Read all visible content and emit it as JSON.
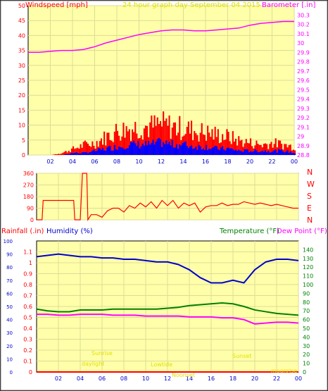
{
  "title": "24 hour graph day   September 04 2015",
  "colors": {
    "background": "#ffffff",
    "plot": "#ffffaa",
    "grid": "#dcdc96",
    "wind": "#ff0000",
    "gust": "#0000ff",
    "barometer": "#ff00ff",
    "direction": "#ff0000",
    "rain": "#ff0000",
    "humidity": "#0000cc",
    "temperature": "#008000",
    "dewpoint": "#ff00ff",
    "axis_left": "#ff0000",
    "axis_blue": "#0000cc",
    "axis_green": "#008000",
    "annotation": "#e0e000"
  },
  "x_ticks": [
    "02",
    "04",
    "06",
    "08",
    "10",
    "12",
    "14",
    "16",
    "18",
    "20",
    "22",
    "00"
  ],
  "annotations": {
    "sunrise": "Sunrise",
    "daylight": "daylight",
    "lowtide": "Lowtide",
    "noonset": "Noonset",
    "sunset": "Sunset",
    "moonrise": "moonrise"
  },
  "chart_data": [
    {
      "type": "line",
      "name": "wind-barometer",
      "title": "24 hour graph day   September 04 2015",
      "ylabel_left": "Windspeed [mph]",
      "ylabel_right": "Barometer [.in]",
      "ylim_left": [
        0,
        50
      ],
      "ylim_right": [
        28.8,
        30.4
      ],
      "yticks_left": [
        "0",
        "5",
        "10",
        "15",
        "20",
        "25",
        "30",
        "35",
        "40",
        "45",
        "50"
      ],
      "yticks_right": [
        "28.8",
        "28.9",
        "29",
        "29.1",
        "29.2",
        "29.3",
        "29.4",
        "29.5",
        "29.6",
        "29.7",
        "29.8",
        "29.9",
        "30",
        "30.1",
        "30.2",
        "30.3"
      ],
      "x_hours": [
        0,
        1,
        2,
        3,
        4,
        5,
        6,
        7,
        8,
        9,
        10,
        11,
        12,
        13,
        14,
        15,
        16,
        17,
        18,
        19,
        20,
        21,
        22,
        23,
        24
      ],
      "series": [
        {
          "key": "barometer",
          "axis": "right",
          "values": [
            29.9,
            29.9,
            29.91,
            29.92,
            29.92,
            29.93,
            29.96,
            30.0,
            30.03,
            30.06,
            30.09,
            30.11,
            30.13,
            30.14,
            30.14,
            30.13,
            30.13,
            30.14,
            30.15,
            30.16,
            30.19,
            30.21,
            30.22,
            30.23,
            30.23
          ]
        },
        {
          "key": "wind_gust_max",
          "axis": "left",
          "values": [
            0,
            0,
            0,
            1,
            3,
            5,
            6,
            9,
            12,
            13,
            14,
            14,
            15,
            14,
            13,
            12,
            11,
            10,
            9,
            7,
            6,
            5,
            6,
            5,
            4
          ]
        },
        {
          "key": "wind_avg",
          "axis": "left",
          "values": [
            0,
            0,
            0,
            0,
            1,
            1,
            2,
            3,
            4,
            5,
            5,
            5,
            6,
            5,
            5,
            4,
            4,
            3,
            3,
            2,
            2,
            2,
            2,
            2,
            1
          ]
        }
      ]
    },
    {
      "type": "line",
      "name": "wind-direction",
      "ylim": [
        0,
        360
      ],
      "yticks": [
        "0",
        "90",
        "180",
        "270",
        "360"
      ],
      "compass": [
        "N",
        "W",
        "S",
        "E",
        "N"
      ],
      "x_hours": [
        0,
        0.5,
        0.6,
        1,
        2,
        3,
        3.4,
        3.5,
        4,
        4.2,
        4.6,
        4.7,
        5,
        5.5,
        6,
        6.5,
        7,
        7.5,
        8,
        8.5,
        9,
        9.5,
        10,
        10.5,
        11,
        11.5,
        12,
        12.5,
        13,
        13.5,
        14,
        14.5,
        15,
        15.5,
        16,
        16.5,
        17,
        17.5,
        18,
        18.5,
        19,
        19.5,
        20,
        20.5,
        21,
        21.5,
        22,
        22.5,
        23,
        23.5,
        24
      ],
      "values": [
        0,
        0,
        150,
        150,
        150,
        150,
        150,
        0,
        0,
        360,
        360,
        0,
        40,
        40,
        20,
        70,
        90,
        90,
        60,
        110,
        90,
        130,
        100,
        140,
        90,
        150,
        110,
        150,
        90,
        130,
        110,
        130,
        60,
        100,
        110,
        110,
        130,
        110,
        120,
        120,
        140,
        130,
        120,
        130,
        120,
        110,
        120,
        110,
        100,
        90,
        90
      ]
    },
    {
      "type": "line",
      "name": "rain-humidity-temperature",
      "ylabel_rain": "Rainfall (.in)",
      "ylabel_humidity": "Humidity (%)",
      "ylabel_temperature": "Temperature (°F)",
      "ylabel_dewpoint": "Dew Point (°F)",
      "ylim_rain": [
        0,
        1.2
      ],
      "ylim_humidity": [
        0,
        100
      ],
      "ylim_temperature": [
        0,
        150
      ],
      "yticks_rain": [
        "0",
        "0.1",
        "0.2",
        "0.3",
        "0.4",
        "0.5",
        "0.6",
        "0.7",
        "0.8",
        "0.9",
        "1",
        "1.1"
      ],
      "yticks_humidity": [
        "0",
        "10",
        "20",
        "30",
        "40",
        "50",
        "60",
        "70",
        "80",
        "90",
        "100"
      ],
      "yticks_temperature": [
        "0",
        "10",
        "20",
        "30",
        "40",
        "50",
        "60",
        "70",
        "80",
        "90",
        "100",
        "110",
        "120",
        "130",
        "140"
      ],
      "x_hours": [
        0,
        1,
        2,
        3,
        4,
        5,
        6,
        7,
        8,
        9,
        10,
        11,
        12,
        13,
        14,
        15,
        16,
        17,
        18,
        19,
        20,
        21,
        22,
        23,
        24
      ],
      "series": [
        {
          "key": "humidity",
          "axis": "humidity",
          "values": [
            88,
            89,
            90,
            89,
            88,
            88,
            87,
            87,
            86,
            86,
            85,
            84,
            84,
            82,
            78,
            72,
            68,
            68,
            70,
            68,
            78,
            84,
            86,
            86,
            85
          ]
        },
        {
          "key": "temperature",
          "axis": "temperature",
          "values": [
            72,
            70,
            69,
            69,
            71,
            71,
            71,
            72,
            72,
            72,
            72,
            72,
            73,
            74,
            76,
            77,
            78,
            79,
            78,
            75,
            71,
            69,
            67,
            66,
            65
          ]
        },
        {
          "key": "dewpoint",
          "axis": "temperature",
          "values": [
            66,
            66,
            65,
            65,
            66,
            66,
            66,
            65,
            65,
            65,
            64,
            64,
            64,
            64,
            63,
            63,
            63,
            62,
            62,
            60,
            55,
            56,
            57,
            57,
            56
          ]
        },
        {
          "key": "rainfall",
          "axis": "rain",
          "values": [
            0,
            0,
            0,
            0,
            0,
            0,
            0,
            0,
            0,
            0,
            0,
            0,
            0,
            0,
            0,
            0,
            0,
            0,
            0,
            0,
            0,
            0,
            0,
            0,
            0
          ]
        }
      ]
    }
  ]
}
